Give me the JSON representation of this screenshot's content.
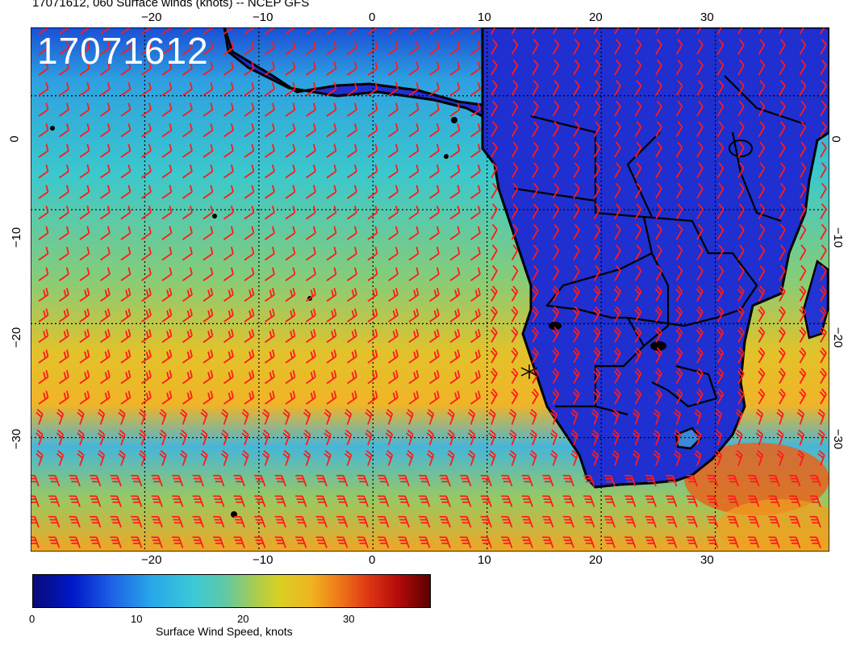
{
  "title": "17071612, 060 Surface winds (knots) -- NCEP GFS",
  "stamp": "17071612",
  "lon_labels": [
    "−20",
    "−10",
    "0",
    "10",
    "20",
    "30"
  ],
  "lat_labels": [
    "0",
    "−10",
    "−20",
    "−30"
  ],
  "colorbar": {
    "label": "Surface Wind Speed, knots",
    "ticks": [
      "0",
      "10",
      "20",
      "30"
    ],
    "range": [
      0,
      38
    ]
  },
  "colors": {
    "barb": "#ff1a1a",
    "land": "#1f2fd0",
    "ocean_trade": "#33c4d0",
    "ocean_strong": "#e0c020",
    "coast": "#000000"
  },
  "map": {
    "lon_range": [
      -30,
      40
    ],
    "lat_range": [
      -40,
      6
    ]
  }
}
